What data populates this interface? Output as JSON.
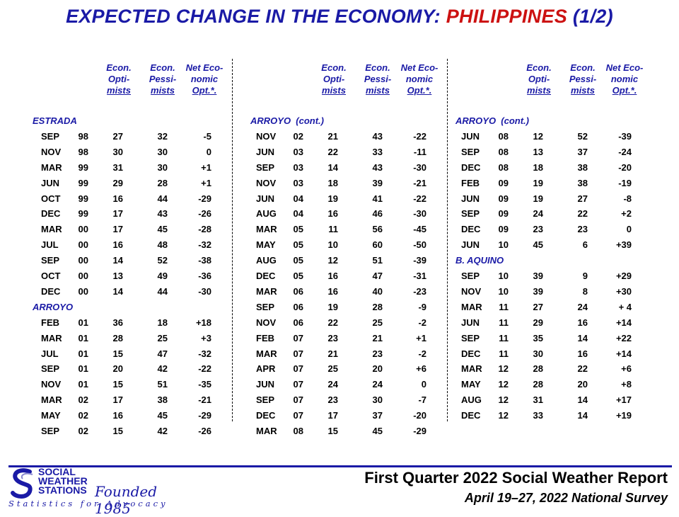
{
  "title": {
    "part1": "EXPECTED CHANGE IN THE ECONOMY:",
    "part2": "PHILIPPINES",
    "part3": "(1/2)"
  },
  "headers": {
    "opt": [
      "Econ.",
      "Opti-",
      "mists"
    ],
    "pes": [
      "Econ.",
      "Pessi-",
      "mists"
    ],
    "net": [
      "Net Eco-",
      "nomic",
      "Opt.*."
    ]
  },
  "columns": [
    [
      {
        "section": "ESTRADA"
      },
      [
        "SEP",
        "98",
        "27",
        "32",
        "-5"
      ],
      [
        "NOV",
        "98",
        "30",
        "30",
        "0"
      ],
      [
        "MAR",
        "99",
        "31",
        "30",
        "+1"
      ],
      [
        "JUN",
        "99",
        "29",
        "28",
        "+1"
      ],
      [
        "OCT",
        "99",
        "16",
        "44",
        "-29"
      ],
      [
        "DEC",
        "99",
        "17",
        "43",
        "-26"
      ],
      [
        "MAR",
        "00",
        "17",
        "45",
        "-28"
      ],
      [
        "JUL",
        "00",
        "16",
        "48",
        "-32"
      ],
      [
        "SEP",
        "00",
        "14",
        "52",
        "-38"
      ],
      [
        "OCT",
        "00",
        "13",
        "49",
        "-36"
      ],
      [
        "DEC",
        "00",
        "14",
        "44",
        "-30"
      ],
      {
        "section": "ARROYO"
      },
      [
        "FEB",
        "01",
        "36",
        "18",
        "+18"
      ],
      [
        "MAR",
        "01",
        "28",
        "25",
        "+3"
      ],
      [
        "JUL",
        "01",
        "15",
        "47",
        "-32"
      ],
      [
        "SEP",
        "01",
        "20",
        "42",
        "-22"
      ],
      [
        "NOV",
        "01",
        "15",
        "51",
        "-35"
      ],
      [
        "MAR",
        "02",
        "17",
        "38",
        "-21"
      ],
      [
        "MAY",
        "02",
        "16",
        "45",
        "-29"
      ],
      [
        "SEP",
        "02",
        "15",
        "42",
        "-26"
      ]
    ],
    [
      {
        "section": "ARROYO  (cont.)"
      },
      [
        "NOV",
        "02",
        "21",
        "43",
        "-22"
      ],
      [
        "JUN",
        "03",
        "22",
        "33",
        "-11"
      ],
      [
        "SEP",
        "03",
        "14",
        "43",
        "-30"
      ],
      [
        "NOV",
        "03",
        "18",
        "39",
        "-21"
      ],
      [
        "JUN",
        "04",
        "19",
        "41",
        "-22"
      ],
      [
        "AUG",
        "04",
        "16",
        "46",
        "-30"
      ],
      [
        "MAR",
        "05",
        "11",
        "56",
        "-45"
      ],
      [
        "MAY",
        "05",
        "10",
        "60",
        "-50"
      ],
      [
        "AUG",
        "05",
        "12",
        "51",
        "-39"
      ],
      [
        "DEC",
        "05",
        "16",
        "47",
        "-31"
      ],
      [
        "MAR",
        "06",
        "16",
        "40",
        "-23"
      ],
      [
        "SEP",
        "06",
        "19",
        "28",
        "-9"
      ],
      [
        "NOV",
        "06",
        "22",
        "25",
        "-2"
      ],
      [
        "FEB",
        "07",
        "23",
        "21",
        "+1"
      ],
      [
        "MAR",
        "07",
        "21",
        "23",
        "-2"
      ],
      [
        "APR",
        "07",
        "25",
        "20",
        "+6"
      ],
      [
        "JUN",
        "07",
        "24",
        "24",
        "0"
      ],
      [
        "SEP",
        "07",
        "23",
        "30",
        "-7"
      ],
      [
        "DEC",
        "07",
        "17",
        "37",
        "-20"
      ],
      [
        "MAR",
        "08",
        "15",
        "45",
        "-29"
      ]
    ],
    [
      {
        "section": "ARROYO  (cont.)"
      },
      [
        "JUN",
        "08",
        "12",
        "52",
        "-39"
      ],
      [
        "SEP",
        "08",
        "13",
        "37",
        "-24"
      ],
      [
        "DEC",
        "08",
        "18",
        "38",
        "-20"
      ],
      [
        "FEB",
        "09",
        "19",
        "38",
        "-19"
      ],
      [
        "JUN",
        "09",
        "19",
        "27",
        "-8"
      ],
      [
        "SEP",
        "09",
        "24",
        "22",
        "+2"
      ],
      [
        "DEC",
        "09",
        "23",
        "23",
        "0"
      ],
      [
        "JUN",
        "10",
        "45",
        "6",
        "+39"
      ],
      {
        "section": "B. AQUINO"
      },
      [
        "SEP",
        "10",
        "39",
        "9",
        "+29"
      ],
      [
        "NOV",
        "10",
        "39",
        "8",
        "+30"
      ],
      [
        "MAR",
        "11",
        "27",
        "24",
        "+ 4"
      ],
      [
        "JUN",
        "11",
        "29",
        "16",
        "+14"
      ],
      [
        "SEP",
        "11",
        "35",
        "14",
        "+22"
      ],
      [
        "DEC",
        "11",
        "30",
        "16",
        "+14"
      ],
      [
        "MAR",
        "12",
        "28",
        "22",
        "+6"
      ],
      [
        "MAY",
        "12",
        "28",
        "20",
        "+8"
      ],
      [
        "AUG",
        "12",
        "31",
        "14",
        "+17"
      ],
      [
        "DEC",
        "12",
        "33",
        "14",
        "+19"
      ]
    ]
  ],
  "footer": {
    "report": "First Quarter 2022 Social Weather Report",
    "survey": "April 19–27, 2022 National Survey"
  },
  "logo": {
    "name_lines": [
      "SOCIAL",
      "WEATHER",
      "STATIONS"
    ],
    "founded": "Founded 1985",
    "tagline": "Statistics for Advocacy"
  },
  "colors": {
    "blue": "#1a1aa6",
    "red": "#cc1111"
  }
}
